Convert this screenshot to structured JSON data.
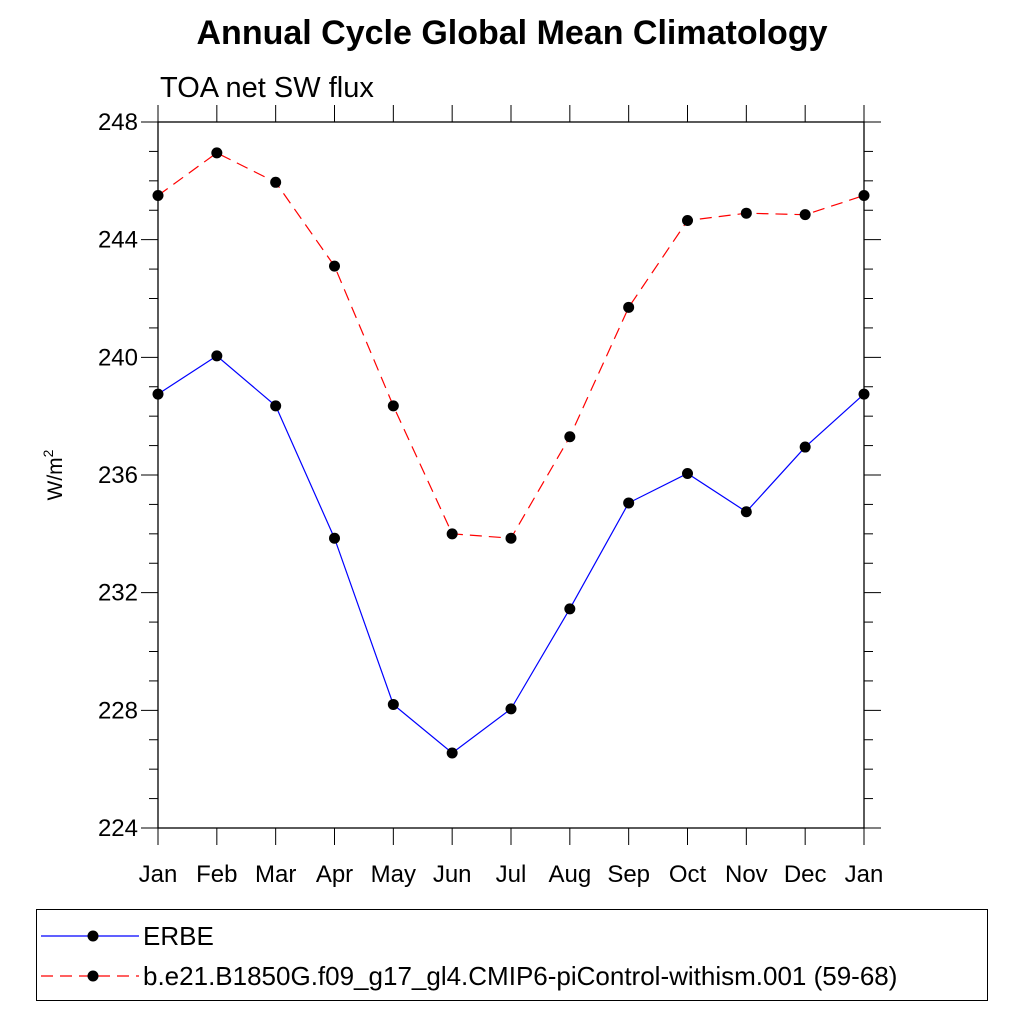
{
  "title": "Annual Cycle Global Mean Climatology",
  "subtitle": "TOA net SW flux",
  "chart_data": {
    "type": "line",
    "title": "Annual Cycle Global Mean Climatology",
    "subtitle": "TOA net SW flux",
    "xlabel": "",
    "ylabel_base": "W/m",
    "ylabel_sup": "2",
    "categories": [
      "Jan",
      "Feb",
      "Mar",
      "Apr",
      "May",
      "Jun",
      "Jul",
      "Aug",
      "Sep",
      "Oct",
      "Nov",
      "Dec",
      "Jan"
    ],
    "ylim": [
      224,
      248
    ],
    "yticks": [
      224,
      228,
      232,
      236,
      240,
      244,
      248
    ],
    "yticks_labels": [
      "224",
      "228",
      "232",
      "236",
      "240",
      "244",
      "248"
    ],
    "series": [
      {
        "name": "ERBE",
        "color": "#0000ff",
        "dash": "solid",
        "marker": "filled-circle",
        "values": [
          238.75,
          240.05,
          238.35,
          233.85,
          228.2,
          226.55,
          228.05,
          231.45,
          235.05,
          236.05,
          234.75,
          236.95,
          238.75
        ]
      },
      {
        "name": "b.e21.B1850G.f09_g17_gl4.CMIP6-piControl-withism.001 (59-68)",
        "color": "#ff0000",
        "dash": "dashed",
        "marker": "filled-circle",
        "values": [
          245.5,
          246.95,
          245.95,
          243.1,
          238.35,
          234.0,
          233.85,
          237.3,
          241.7,
          244.65,
          244.9,
          244.85,
          245.5
        ]
      }
    ],
    "grid": false,
    "legend_position": "bottom"
  }
}
